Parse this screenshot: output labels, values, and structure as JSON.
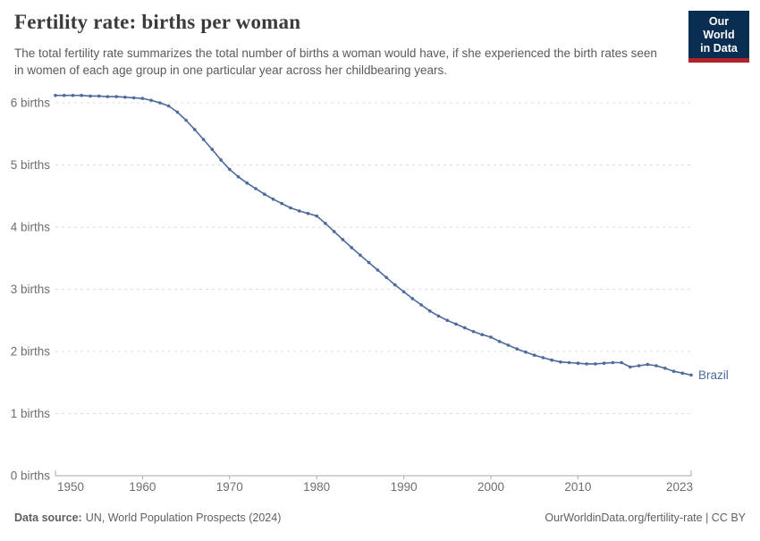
{
  "header": {
    "title": "Fertility rate: births per woman",
    "subtitle": "The total fertility rate summarizes the total number of births a woman would have, if she experienced the birth rates seen in women of each age group in one particular year across her childbearing years.",
    "logo": {
      "line1": "Our World",
      "line2": "in Data",
      "bg_color": "#0a2d52",
      "stripe_color": "#b0232a"
    }
  },
  "footer": {
    "source_label": "Data source:",
    "source_text": "UN, World Population Prospects (2024)",
    "link_text": "OurWorldinData.org/fertility-rate | CC BY"
  },
  "colors": {
    "line": "#4c6a9c",
    "grid": "#dcdcdc",
    "axis": "#a8a8a8",
    "tick_text": "#6e6e6e",
    "series_label": "#4c6a9c"
  },
  "chart_data": {
    "type": "line",
    "title": "Fertility rate: births per woman",
    "legend": "series-end-label",
    "grid": "horizontal-dashed",
    "xlim": [
      1950,
      2023
    ],
    "ylim": [
      0,
      6.3
    ],
    "xticks": [
      "1950",
      "1960",
      "1970",
      "1980",
      "1990",
      "2000",
      "2010",
      "2023"
    ],
    "yticks": [
      {
        "v": 0,
        "label": "0 births"
      },
      {
        "v": 1,
        "label": "1 births"
      },
      {
        "v": 2,
        "label": "2 births"
      },
      {
        "v": 3,
        "label": "3 births"
      },
      {
        "v": 4,
        "label": "4 births"
      },
      {
        "v": 5,
        "label": "5 births"
      },
      {
        "v": 6,
        "label": "6 births"
      }
    ],
    "series": [
      {
        "name": "Brazil",
        "color": "#4c6a9c",
        "x": [
          1950,
          1951,
          1952,
          1953,
          1954,
          1955,
          1956,
          1957,
          1958,
          1959,
          1960,
          1961,
          1962,
          1963,
          1964,
          1965,
          1966,
          1967,
          1968,
          1969,
          1970,
          1971,
          1972,
          1973,
          1974,
          1975,
          1976,
          1977,
          1978,
          1979,
          1980,
          1981,
          1982,
          1983,
          1984,
          1985,
          1986,
          1987,
          1988,
          1989,
          1990,
          1991,
          1992,
          1993,
          1994,
          1995,
          1996,
          1997,
          1998,
          1999,
          2000,
          2001,
          2002,
          2003,
          2004,
          2005,
          2006,
          2007,
          2008,
          2009,
          2010,
          2011,
          2012,
          2013,
          2014,
          2015,
          2016,
          2017,
          2018,
          2019,
          2020,
          2021,
          2022,
          2023
        ],
        "values": [
          6.12,
          6.12,
          6.12,
          6.12,
          6.11,
          6.11,
          6.1,
          6.1,
          6.09,
          6.08,
          6.07,
          6.04,
          6.0,
          5.95,
          5.85,
          5.72,
          5.57,
          5.41,
          5.25,
          5.08,
          4.93,
          4.81,
          4.71,
          4.62,
          4.53,
          4.45,
          4.38,
          4.31,
          4.26,
          4.22,
          4.18,
          4.06,
          3.93,
          3.8,
          3.67,
          3.55,
          3.43,
          3.31,
          3.19,
          3.07,
          2.96,
          2.85,
          2.75,
          2.65,
          2.57,
          2.5,
          2.44,
          2.38,
          2.32,
          2.27,
          2.23,
          2.16,
          2.1,
          2.04,
          1.99,
          1.94,
          1.9,
          1.86,
          1.83,
          1.82,
          1.81,
          1.8,
          1.8,
          1.81,
          1.82,
          1.82,
          1.75,
          1.77,
          1.79,
          1.77,
          1.73,
          1.68,
          1.65,
          1.62
        ]
      }
    ]
  }
}
